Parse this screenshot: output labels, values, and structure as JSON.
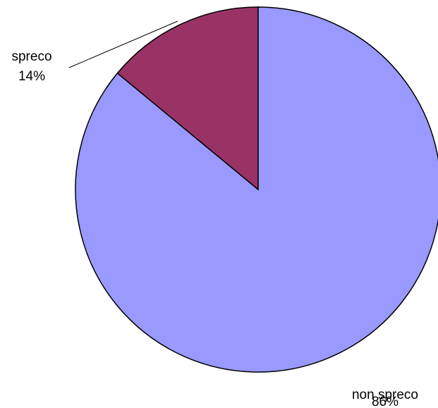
{
  "chart_data": {
    "type": "pie",
    "title": "",
    "slices": [
      {
        "name": "spreco",
        "value": 14,
        "percent_label": "14%",
        "color": "#993366"
      },
      {
        "name": "non spreco",
        "value": 86,
        "percent_label": "86%",
        "color": "#9999ff"
      }
    ],
    "start_angle_deg": 0,
    "direction": "counterclockwise",
    "legend": "none",
    "grid": false
  }
}
